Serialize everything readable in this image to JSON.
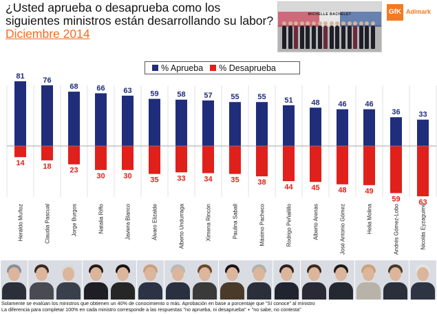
{
  "header": {
    "title": "¿Usted aprueba o desaprueba como los siguientes ministros están desarrollando su labor?",
    "date": "Diciembre 2014"
  },
  "photo": {
    "caption": "MICHELLE BACHELET"
  },
  "logo": {
    "mark": "GfK",
    "brand": "Adimark"
  },
  "colors": {
    "approve": "#1f2d7a",
    "disapprove": "#e0201b",
    "title_accent": "#f26b21",
    "brand": "#f47920"
  },
  "chart_data": {
    "type": "bar",
    "title": "¿Usted aprueba o desaprueba como los siguientes ministros están desarrollando su labor? Diciembre 2014",
    "categories": [
      "Heraldo Muñoz",
      "Claudia Pascual",
      "Jorge Burgos",
      "Natalia Riffo",
      "Javiera Blanco",
      "Álvaro Elizalde",
      "Alberto Undurraga",
      "Ximena Rincón",
      "Paulina Saball",
      "Máximo Pacheco",
      "Rodrigo Peñailillo",
      "Alberto Arenas",
      "José Antonio Gómez",
      "Helia Molina",
      "Andrés Gómez-Lobo",
      "Nicolás Eyzaguirre"
    ],
    "series": [
      {
        "name": "% Aprueba",
        "values": [
          81,
          76,
          68,
          66,
          63,
          59,
          58,
          57,
          55,
          55,
          51,
          48,
          46,
          46,
          36,
          33
        ]
      },
      {
        "name": "% Desaprueba",
        "values": [
          14,
          18,
          23,
          30,
          30,
          35,
          33,
          34,
          35,
          38,
          44,
          45,
          48,
          49,
          59,
          63
        ]
      }
    ],
    "legend": [
      "% Aprueba",
      "% Desaprueba"
    ],
    "legend_position": "top-center",
    "xlabel": "",
    "ylabel": "",
    "ylim": [
      -63,
      81
    ],
    "grid": false
  },
  "footnote": {
    "line1": "Solamente se evalúan los ministros que obtienen un 40% de conocimiento o más. Aprobación en base a porcentaje que \"Sí conoce\" al ministro",
    "line2": "La diferencia para completar 100% en cada ministro corresponde a las respuestas \"no aprueba, ni desaprueba\" + \"no sabe, no contesta\""
  }
}
